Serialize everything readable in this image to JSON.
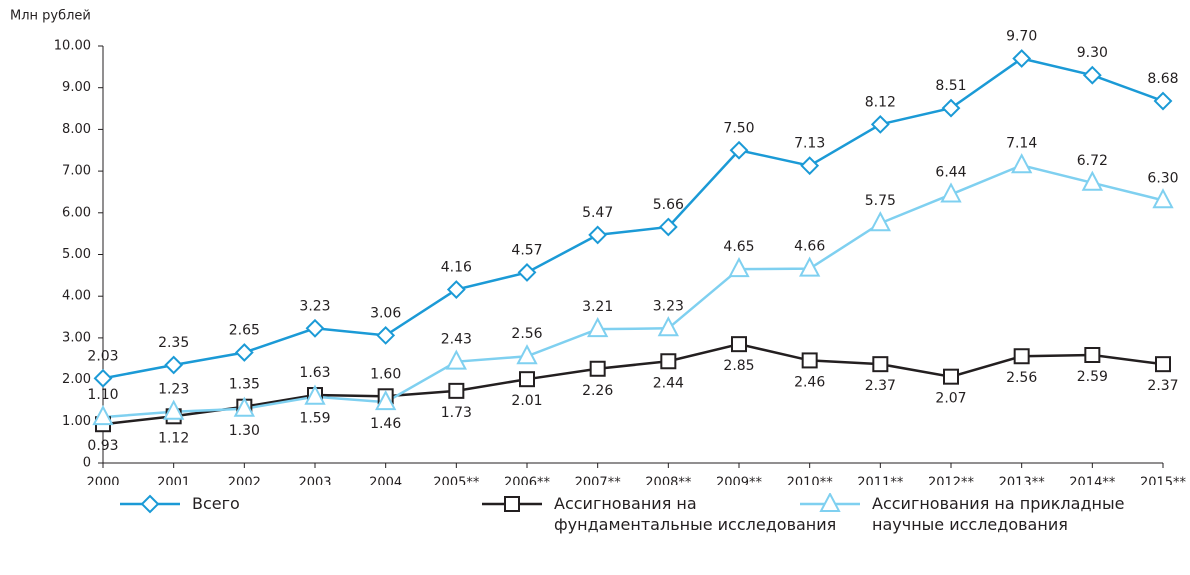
{
  "chart_data": {
    "type": "line",
    "y_label": "Млн рублей",
    "categories": [
      "2000",
      "2001",
      "2002",
      "2003",
      "2004",
      "2005**",
      "2006**",
      "2007**",
      "2008**",
      "2009**",
      "2010**",
      "2011**",
      "2012**",
      "2013**",
      "2014**",
      "2015**"
    ],
    "series": [
      {
        "name": "Всего",
        "color": "#1b9ad6",
        "marker": "diamond",
        "values": [
          2.03,
          2.35,
          2.65,
          3.23,
          3.06,
          4.16,
          4.57,
          5.47,
          5.66,
          7.5,
          7.13,
          8.12,
          8.51,
          9.7,
          9.3,
          8.68
        ],
        "value_labels": [
          "2.03",
          "2.35",
          "2.65",
          "3.23",
          "3.06",
          "4.16",
          "4.57",
          "5.47",
          "5.66",
          "7.50",
          "7.13",
          "8.12",
          "8.51",
          "9.70",
          "9.30",
          "8.68"
        ]
      },
      {
        "name": "Ассигнования на фундаментальные исследования",
        "color": "#231f20",
        "marker": "square",
        "values": [
          0.93,
          1.12,
          1.35,
          1.63,
          1.6,
          1.73,
          2.01,
          2.26,
          2.44,
          2.85,
          2.46,
          2.37,
          2.07,
          2.56,
          2.59,
          2.37
        ],
        "value_labels": [
          "0.93",
          "1.12",
          "1.35",
          "1.63",
          "1.60",
          "1.73",
          "2.01",
          "2.26",
          "2.44",
          "2.85",
          "2.46",
          "2.37",
          "2.07",
          "2.56",
          "2.59",
          "2.37"
        ]
      },
      {
        "name": "Ассигнования на прикладные научные исследования",
        "color": "#7fd0f0",
        "marker": "triangle",
        "values": [
          1.1,
          1.23,
          1.3,
          1.59,
          1.46,
          2.43,
          2.56,
          3.21,
          3.23,
          4.65,
          4.66,
          5.75,
          6.44,
          7.14,
          6.72,
          6.3
        ],
        "value_labels": [
          "1.10",
          "1.23",
          "1.30",
          "1.59",
          "1.46",
          "2.43",
          "2.56",
          "3.21",
          "3.23",
          "4.65",
          "4.66",
          "5.75",
          "6.44",
          "7.14",
          "6.72",
          "6.30"
        ]
      }
    ],
    "ylim": [
      0,
      10
    ],
    "yticks": [
      0,
      {
        "value": 1,
        "label": "1.00"
      },
      {
        "value": 2,
        "label": "2.00"
      },
      {
        "value": 3,
        "label": "3.00"
      },
      {
        "value": 4,
        "label": "4.00"
      },
      {
        "value": 5,
        "label": "5.00"
      },
      {
        "value": 6,
        "label": "6.00"
      },
      {
        "value": 7,
        "label": "7.00"
      },
      {
        "value": 8,
        "label": "8.00"
      },
      {
        "value": 9,
        "label": "9.00"
      },
      {
        "value": 10,
        "label": "10.00"
      }
    ],
    "grid": false
  }
}
